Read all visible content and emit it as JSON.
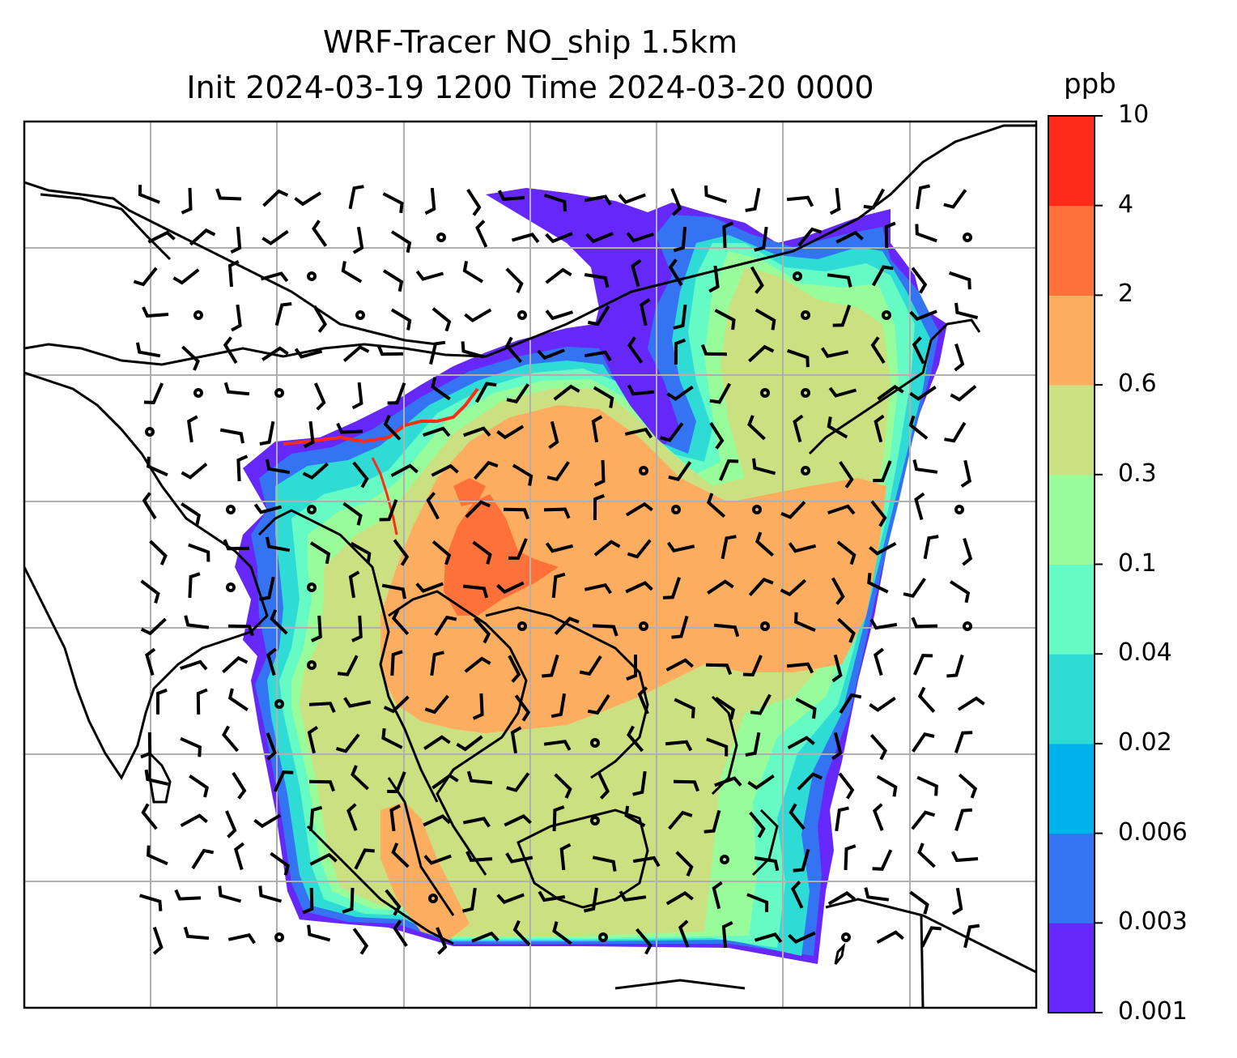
{
  "title": {
    "line1": "WRF-Tracer NO_ship 1.5km",
    "line2": "Init 2024-03-19 1200 Time 2024-03-20 0000"
  },
  "colorbar": {
    "unit": "ppb",
    "ticks": [
      "0.001",
      "0.003",
      "0.006",
      "0.02",
      "0.04",
      "0.1",
      "0.3",
      "0.6",
      "2",
      "4",
      "10"
    ],
    "colors": [
      "#6528f9",
      "#3474f2",
      "#00b2ea",
      "#2fdcd5",
      "#66fbc5",
      "#99fc9a",
      "#cbe080",
      "#fdad5f",
      "#ff713a",
      "#ff2b1a"
    ]
  },
  "map": {
    "projection": "regional domain over South / Southeast Asia",
    "gridlines": true,
    "variable": "NO_ship tracer concentration",
    "overlay": "wind barbs",
    "fill_colors": {
      "very_low": "#6528f9",
      "low": "#3474f2",
      "low_mid": "#00b2ea",
      "cyan": "#2fdcd5",
      "aqua": "#66fbc5",
      "green": "#99fc9a",
      "olive": "#cbe080",
      "orange": "#fdad5f",
      "dark_orange": "#ff713a",
      "red": "#ff2b1a"
    }
  }
}
